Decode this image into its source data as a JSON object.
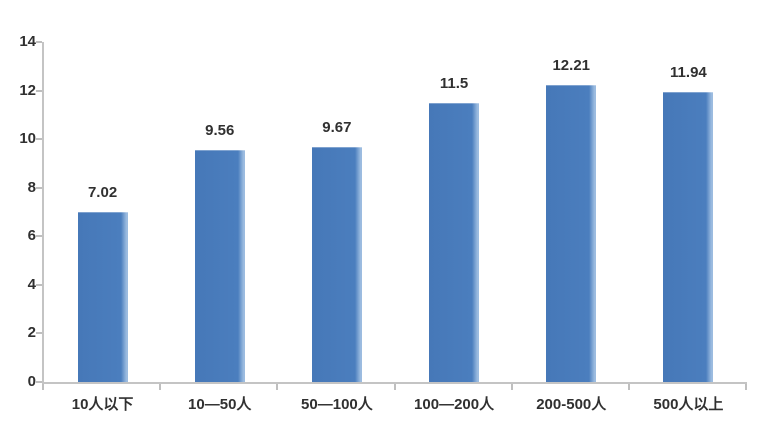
{
  "chart_data": {
    "type": "bar",
    "title": "",
    "xlabel": "",
    "ylabel": "",
    "categories": [
      "10人以下",
      "10—50人",
      "50—100人",
      "100—200人",
      "200-500人",
      "500人以上"
    ],
    "values": [
      7.02,
      9.56,
      9.67,
      11.5,
      12.21,
      11.94
    ],
    "value_labels": [
      "7.02",
      "9.56",
      "9.67",
      "11.5",
      "12.21",
      "11.94"
    ],
    "ylim": [
      0,
      14
    ],
    "yticks": [
      0,
      2,
      4,
      6,
      8,
      10,
      12,
      14
    ],
    "grid": false,
    "legend": false,
    "colors": {
      "bar": "#4B7EBE",
      "bar_dark": "#4678B8",
      "bar_edge_highlight": "#9CBCE0",
      "axis": "#C4C4C4",
      "text": "#303030",
      "background": "#FFFFFF"
    }
  }
}
